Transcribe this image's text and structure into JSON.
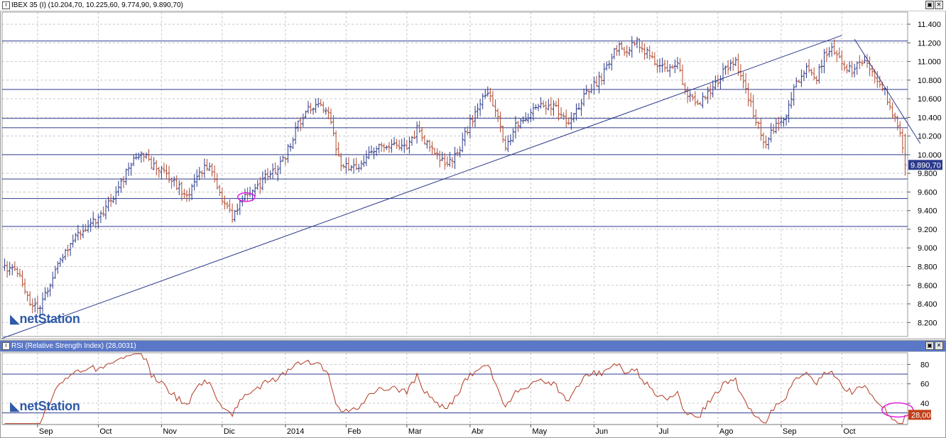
{
  "price_panel": {
    "title": "IBEX 35 (I) (10.204,70, 10.225,60, 9.774,90, 9.890,70)",
    "last_value": "9.890,70",
    "logo_text": "netStation"
  },
  "rsi_panel": {
    "title": "RSI (Relative Strength Index) (28,0031)",
    "last_value": "28,00",
    "logo_text": "netStation"
  },
  "window_buttons": {
    "restore": "▣",
    "close": "✕"
  },
  "colors": {
    "up": "#2c3a8c",
    "down": "#b24a30",
    "line": "#2c3a8c",
    "rsi": "#b23a22",
    "highlight": "#e020e0",
    "label_bg": "#2c3a8c",
    "rsi_label_bg": "#c0401c"
  },
  "chart_data": [
    {
      "type": "ohlc",
      "title": "IBEX 35 (I) (10.204,70, 10.225,60, 9.774,90, 9.890,70)",
      "y_ticks": [
        "11.400",
        "11.200",
        "11.000",
        "10.800",
        "10.600",
        "10.400",
        "10.200",
        "10.000",
        "9.800",
        "9.600",
        "9.400",
        "9.200",
        "9.000",
        "8.800",
        "8.600",
        "8.400",
        "8.200"
      ],
      "y_tick_values": [
        11400,
        11200,
        11000,
        10800,
        10600,
        10400,
        10200,
        10000,
        9800,
        9600,
        9400,
        9200,
        9000,
        8800,
        8600,
        8400,
        8200
      ],
      "ylim": [
        8050,
        11530
      ],
      "x_months": [
        "Sep",
        "Oct",
        "Nov",
        "Dic",
        "2014",
        "Feb",
        "Mar",
        "Abr",
        "May",
        "Jun",
        "Jul",
        "Ago",
        "Sep",
        "Oct"
      ],
      "x_month_values": [
        13,
        37,
        62,
        86,
        111,
        135,
        159,
        184,
        208,
        233,
        258,
        282,
        307,
        331
      ],
      "xlim": [
        -1,
        357
      ],
      "horizontal_levels": [
        11220,
        10700,
        10390,
        10290,
        10000,
        9740,
        9530,
        9230
      ],
      "trendlines": [
        {
          "x": [
            -1,
            331
          ],
          "y": [
            8030,
            11280
          ]
        },
        {
          "x": [
            336,
            362
          ],
          "y": [
            11240,
            10120
          ]
        }
      ],
      "anchor_closes": [
        [
          0,
          8800
        ],
        [
          5,
          8740
        ],
        [
          10,
          8400
        ],
        [
          13,
          8340
        ],
        [
          18,
          8620
        ],
        [
          22,
          8850
        ],
        [
          26,
          9040
        ],
        [
          30,
          9150
        ],
        [
          34,
          9250
        ],
        [
          37,
          9340
        ],
        [
          41,
          9470
        ],
        [
          45,
          9640
        ],
        [
          50,
          9920
        ],
        [
          54,
          10050
        ],
        [
          58,
          9880
        ],
        [
          62,
          9820
        ],
        [
          67,
          9700
        ],
        [
          72,
          9540
        ],
        [
          76,
          9740
        ],
        [
          80,
          9880
        ],
        [
          84,
          9680
        ],
        [
          86,
          9530
        ],
        [
          90,
          9330
        ],
        [
          95,
          9540
        ],
        [
          100,
          9640
        ],
        [
          104,
          9780
        ],
        [
          108,
          9840
        ],
        [
          111,
          9980
        ],
        [
          116,
          10320
        ],
        [
          120,
          10500
        ],
        [
          124,
          10560
        ],
        [
          128,
          10420
        ],
        [
          133,
          9880
        ],
        [
          137,
          9840
        ],
        [
          141,
          9900
        ],
        [
          146,
          10060
        ],
        [
          150,
          10090
        ],
        [
          154,
          10080
        ],
        [
          159,
          10060
        ],
        [
          163,
          10280
        ],
        [
          167,
          10120
        ],
        [
          171,
          9980
        ],
        [
          175,
          9880
        ],
        [
          180,
          10080
        ],
        [
          184,
          10340
        ],
        [
          188,
          10560
        ],
        [
          191,
          10680
        ],
        [
          195,
          10400
        ],
        [
          198,
          10080
        ],
        [
          202,
          10300
        ],
        [
          206,
          10400
        ],
        [
          210,
          10480
        ],
        [
          214,
          10540
        ],
        [
          218,
          10520
        ],
        [
          222,
          10320
        ],
        [
          226,
          10460
        ],
        [
          230,
          10680
        ],
        [
          234,
          10760
        ],
        [
          238,
          10920
        ],
        [
          242,
          11160
        ],
        [
          246,
          11120
        ],
        [
          250,
          11200
        ],
        [
          254,
          11100
        ],
        [
          258,
          10960
        ],
        [
          262,
          10900
        ],
        [
          266,
          10960
        ],
        [
          269,
          10680
        ],
        [
          273,
          10560
        ],
        [
          277,
          10600
        ],
        [
          281,
          10760
        ],
        [
          285,
          10920
        ],
        [
          289,
          10980
        ],
        [
          293,
          10700
        ],
        [
          297,
          10380
        ],
        [
          301,
          10100
        ],
        [
          305,
          10340
        ],
        [
          309,
          10440
        ],
        [
          313,
          10780
        ],
        [
          317,
          10940
        ],
        [
          321,
          10820
        ],
        [
          324,
          11080
        ],
        [
          327,
          11180
        ],
        [
          331,
          10980
        ],
        [
          335,
          10900
        ],
        [
          339,
          11020
        ],
        [
          343,
          10880
        ],
        [
          347,
          10740
        ],
        [
          351,
          10440
        ],
        [
          354,
          10240
        ],
        [
          356,
          9890
        ]
      ],
      "last": {
        "open": 10204.7,
        "high": 10225.6,
        "low": 9774.9,
        "close": 9890.7
      }
    },
    {
      "type": "line",
      "title": "RSI (Relative Strength Index) (28,0031)",
      "y_ticks": [
        "80",
        "60",
        "40"
      ],
      "y_tick_values": [
        80,
        60,
        40
      ],
      "ylim": [
        18,
        92
      ],
      "horizontal_levels": [
        70,
        30
      ],
      "last_value": 28.0
    }
  ]
}
